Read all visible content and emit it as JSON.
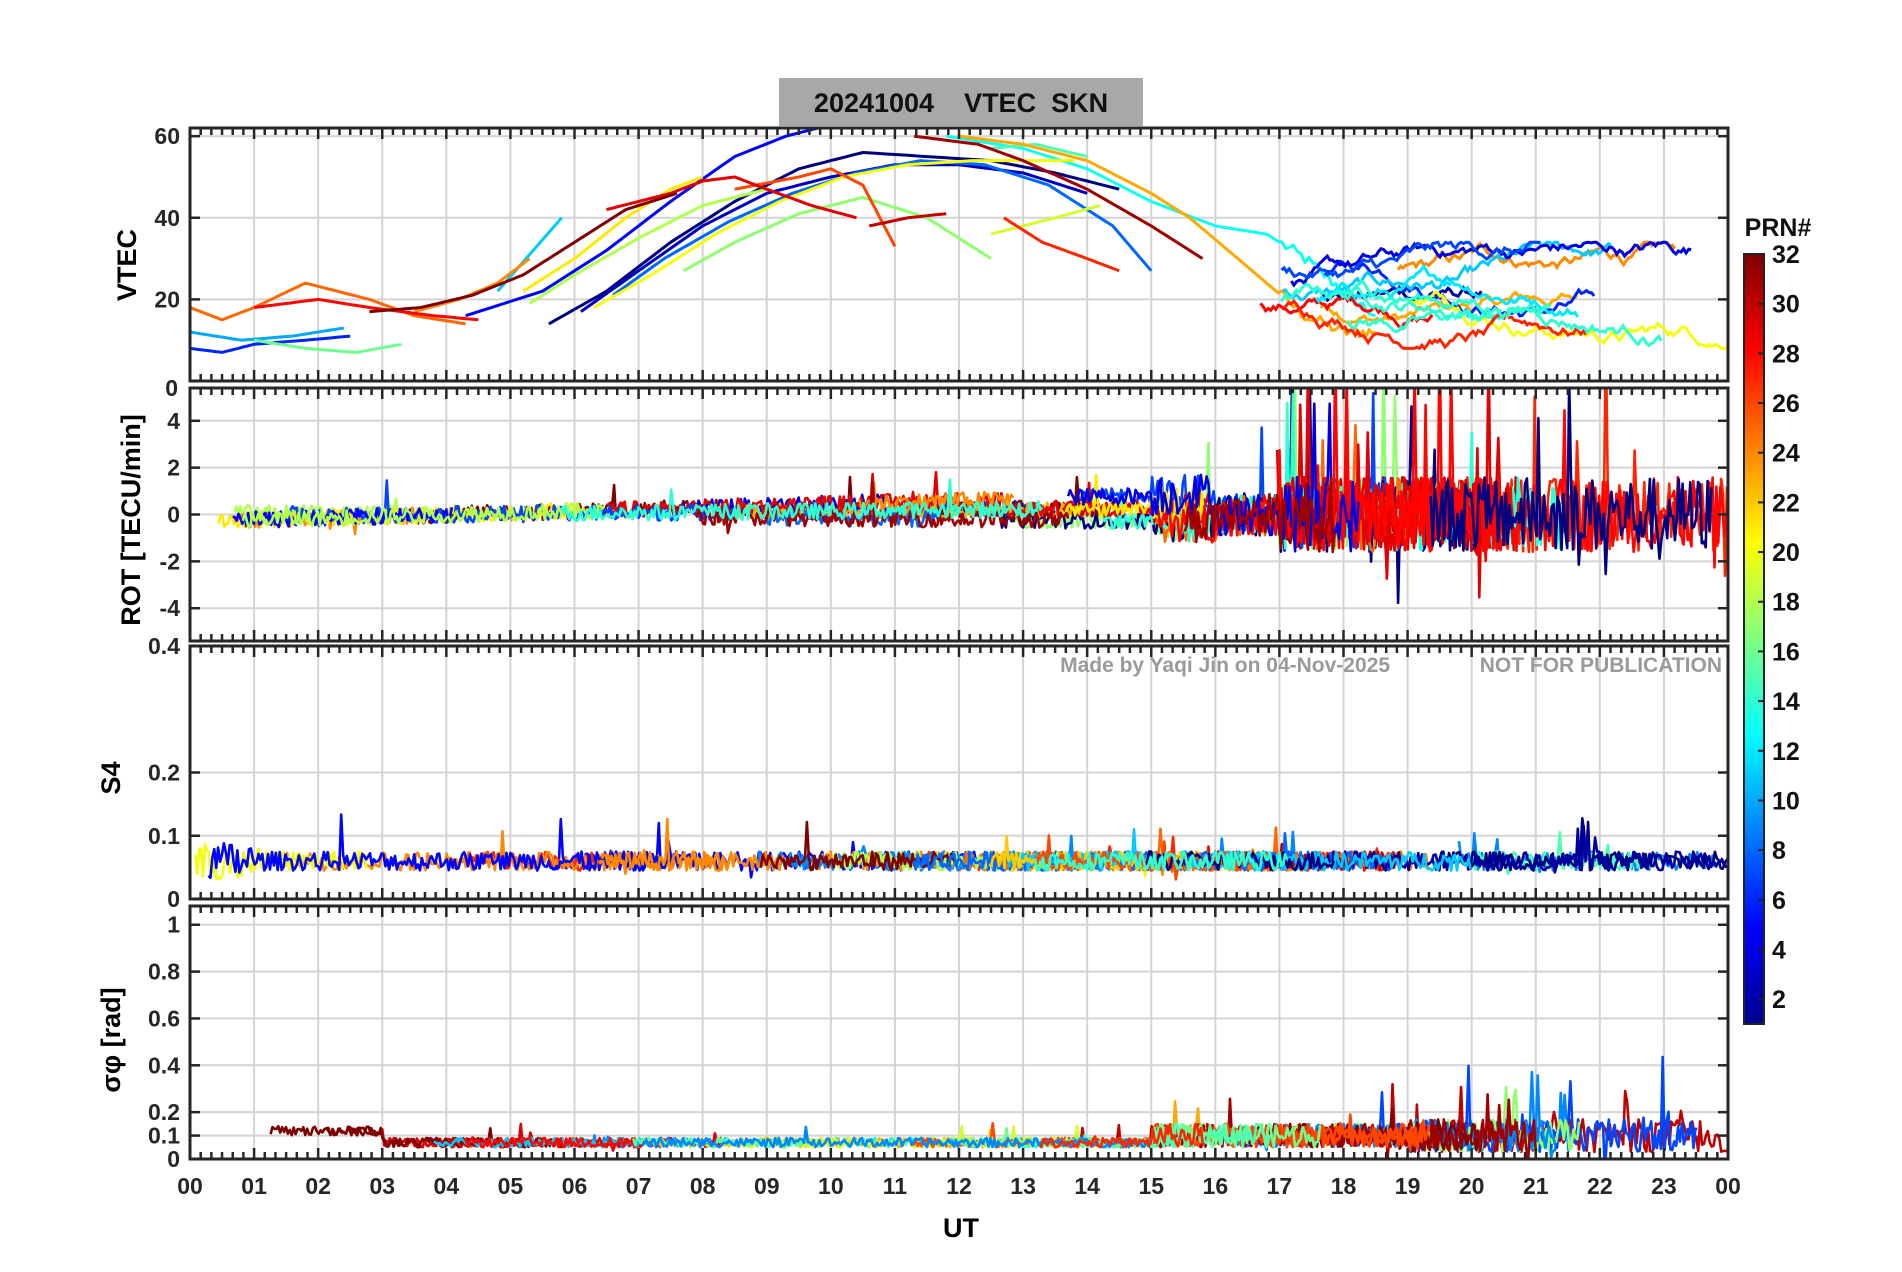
{
  "chart_data": {
    "type": "line",
    "title": "20241004    VTEC  SKN",
    "xlabel": "UT",
    "x_ticks": [
      "00",
      "01",
      "02",
      "03",
      "04",
      "05",
      "06",
      "07",
      "08",
      "09",
      "10",
      "11",
      "12",
      "13",
      "14",
      "15",
      "16",
      "17",
      "18",
      "19",
      "20",
      "21",
      "22",
      "23",
      "00"
    ],
    "xlim": [
      0,
      24
    ],
    "panels": [
      {
        "id": "vtec",
        "ylabel": "VTEC",
        "ylim": [
          0,
          62
        ],
        "yticks": [
          20,
          40,
          60
        ],
        "ytick_labels": [
          "20",
          "40",
          "60"
        ]
      },
      {
        "id": "rot",
        "ylabel": "ROT [TECU/min]",
        "ylim": [
          -5.4,
          5.4
        ],
        "yticks": [
          -4,
          -2,
          0,
          2,
          4
        ],
        "ytick_labels": [
          "-4",
          "-2",
          "0",
          "2",
          "4"
        ]
      },
      {
        "id": "s4",
        "ylabel": "S4",
        "ylim": [
          0,
          0.4
        ],
        "yticks": [
          0,
          0.1,
          0.2,
          0.4
        ],
        "ytick_labels": [
          "0",
          "0.1",
          "0.2",
          "0.4"
        ]
      },
      {
        "id": "sigma",
        "ylabel": "σφ [rad]",
        "ylim": [
          0,
          1.08
        ],
        "yticks": [
          0,
          0.1,
          0.2,
          0.4,
          0.6,
          0.8,
          1
        ],
        "ytick_labels": [
          "0",
          "0.1",
          "0.2",
          "0.4",
          "0.6",
          "0.8",
          "1"
        ]
      }
    ],
    "rot_top_label": "0",
    "watermark": [
      "Made by Yaqi Jin on 04-Nov-2025",
      "NOT FOR PUBLICATION"
    ],
    "colorbar": {
      "label": "PRN#",
      "range": [
        1,
        32
      ],
      "ticks": [
        "32",
        "30",
        "28",
        "26",
        "24",
        "22",
        "20",
        "18",
        "16",
        "14",
        "12",
        "10",
        "8",
        "6",
        "4",
        "2"
      ],
      "tick_values": [
        32,
        30,
        28,
        26,
        24,
        22,
        20,
        18,
        16,
        14,
        12,
        10,
        8,
        6,
        4,
        2
      ]
    },
    "vtec_tracks": [
      {
        "prn": 1,
        "t": [
          5.6,
          6.5,
          7.5,
          8.5,
          9.5,
          10.5,
          11.5,
          12.5,
          13.5,
          14.5
        ],
        "v": [
          14,
          22,
          34,
          44,
          52,
          56,
          55,
          54,
          51,
          47
        ]
      },
      {
        "prn": 3,
        "t": [
          6.1,
          7.0,
          8.0,
          9.0,
          10.0,
          11.0,
          12.0,
          13.0,
          14.0
        ],
        "v": [
          17,
          27,
          38,
          46,
          50,
          53,
          53,
          51,
          46
        ]
      },
      {
        "prn": 5,
        "t": [
          4.3,
          5.5,
          6.5,
          7.5,
          8.5,
          9.3,
          9.8
        ],
        "v": [
          16,
          22,
          32,
          44,
          55,
          60,
          62
        ]
      },
      {
        "prn": 6,
        "t": [
          0.0,
          0.5,
          1.0,
          1.8,
          2.5
        ],
        "v": [
          8,
          7,
          9,
          10,
          11
        ]
      },
      {
        "prn": 8,
        "t": [
          6.6,
          7.4,
          8.4,
          9.4,
          10.4,
          11.4,
          12.4,
          13.4,
          14.4,
          15.0
        ],
        "v": [
          21,
          30,
          39,
          46,
          51,
          54,
          53,
          48,
          38,
          27
        ]
      },
      {
        "prn": 10,
        "t": [
          0.0,
          0.8,
          1.6,
          2.4
        ],
        "v": [
          12,
          10,
          11,
          13
        ]
      },
      {
        "prn": 11,
        "t": [
          4.8,
          5.8
        ],
        "v": [
          22,
          40
        ]
      },
      {
        "prn": 13,
        "t": [
          11.8,
          13.0,
          14.0,
          15.0,
          16.0,
          16.8,
          17.4,
          18.0,
          18.5
        ],
        "v": [
          60,
          57,
          52,
          44,
          38,
          36,
          30,
          22,
          16
        ]
      },
      {
        "prn": 15,
        "t": [
          12.5,
          13.2,
          14.0
        ],
        "v": [
          57,
          58,
          55
        ]
      },
      {
        "prn": 16,
        "t": [
          1.0,
          1.8,
          2.6,
          3.3
        ],
        "v": [
          10,
          8,
          7,
          9
        ]
      },
      {
        "prn": 17,
        "t": [
          7.7,
          8.5,
          9.5,
          10.5,
          11.5,
          12.5
        ],
        "v": [
          27,
          34,
          41,
          45,
          40,
          30
        ]
      },
      {
        "prn": 18,
        "t": [
          5.3,
          6.0,
          7.0,
          8.0,
          9.0
        ],
        "v": [
          19,
          26,
          35,
          43,
          47
        ]
      },
      {
        "prn": 19,
        "t": [
          12.5,
          13.5,
          14.2
        ],
        "v": [
          36,
          40,
          43
        ]
      },
      {
        "prn": 20,
        "t": [
          6.3,
          7.2,
          8.2,
          9.2,
          10.2,
          11.2,
          12.2,
          13.2,
          13.8
        ],
        "v": [
          18,
          26,
          36,
          44,
          50,
          53,
          54,
          54,
          54
        ]
      },
      {
        "prn": 21,
        "t": [
          5.2,
          6.0,
          6.8,
          7.5,
          8.0
        ],
        "v": [
          22,
          30,
          40,
          47,
          50
        ]
      },
      {
        "prn": 23,
        "t": [
          12.0,
          13.0,
          14.0,
          15.0,
          15.6,
          16.2,
          16.8,
          17.4,
          18.0,
          18.5
        ],
        "v": [
          60,
          58,
          54,
          46,
          40,
          32,
          24,
          16,
          12,
          12
        ]
      },
      {
        "prn": 24,
        "t": [
          3.5,
          4.2,
          4.8,
          5.3
        ],
        "v": [
          17,
          20,
          24,
          30
        ]
      },
      {
        "prn": 25,
        "t": [
          0.0,
          0.5,
          1.0,
          1.8,
          2.8,
          3.5,
          4.3
        ],
        "v": [
          18,
          15,
          18,
          24,
          20,
          16,
          14
        ]
      },
      {
        "prn": 26,
        "t": [
          8.5,
          9.5,
          10.0,
          10.5,
          11.0
        ],
        "v": [
          47,
          50,
          52,
          48,
          33
        ]
      },
      {
        "prn": 27,
        "t": [
          12.7,
          13.3,
          14.0,
          14.5
        ],
        "v": [
          40,
          34,
          30,
          27
        ]
      },
      {
        "prn": 28,
        "t": [
          1.0,
          2.0,
          2.8,
          3.8,
          4.5
        ],
        "v": [
          18,
          20,
          18,
          16,
          15
        ]
      },
      {
        "prn": 29,
        "t": [
          6.5,
          7.5,
          8.0,
          8.5,
          9.0,
          9.7,
          10.4
        ],
        "v": [
          42,
          46,
          49,
          50,
          47,
          43,
          40
        ]
      },
      {
        "prn": 30,
        "t": [
          10.6,
          11.2,
          11.8
        ],
        "v": [
          38,
          40,
          41
        ]
      },
      {
        "prn": 31,
        "t": [
          11.3,
          12.3,
          13.0,
          14.0,
          15.0,
          15.8
        ],
        "v": [
          60,
          58,
          54,
          47,
          38,
          30
        ]
      },
      {
        "prn": 32,
        "t": [
          2.8,
          3.6,
          4.4,
          5.2,
          6.0,
          6.8,
          7.6
        ],
        "v": [
          17,
          18,
          21,
          26,
          34,
          42,
          46
        ]
      }
    ]
  }
}
